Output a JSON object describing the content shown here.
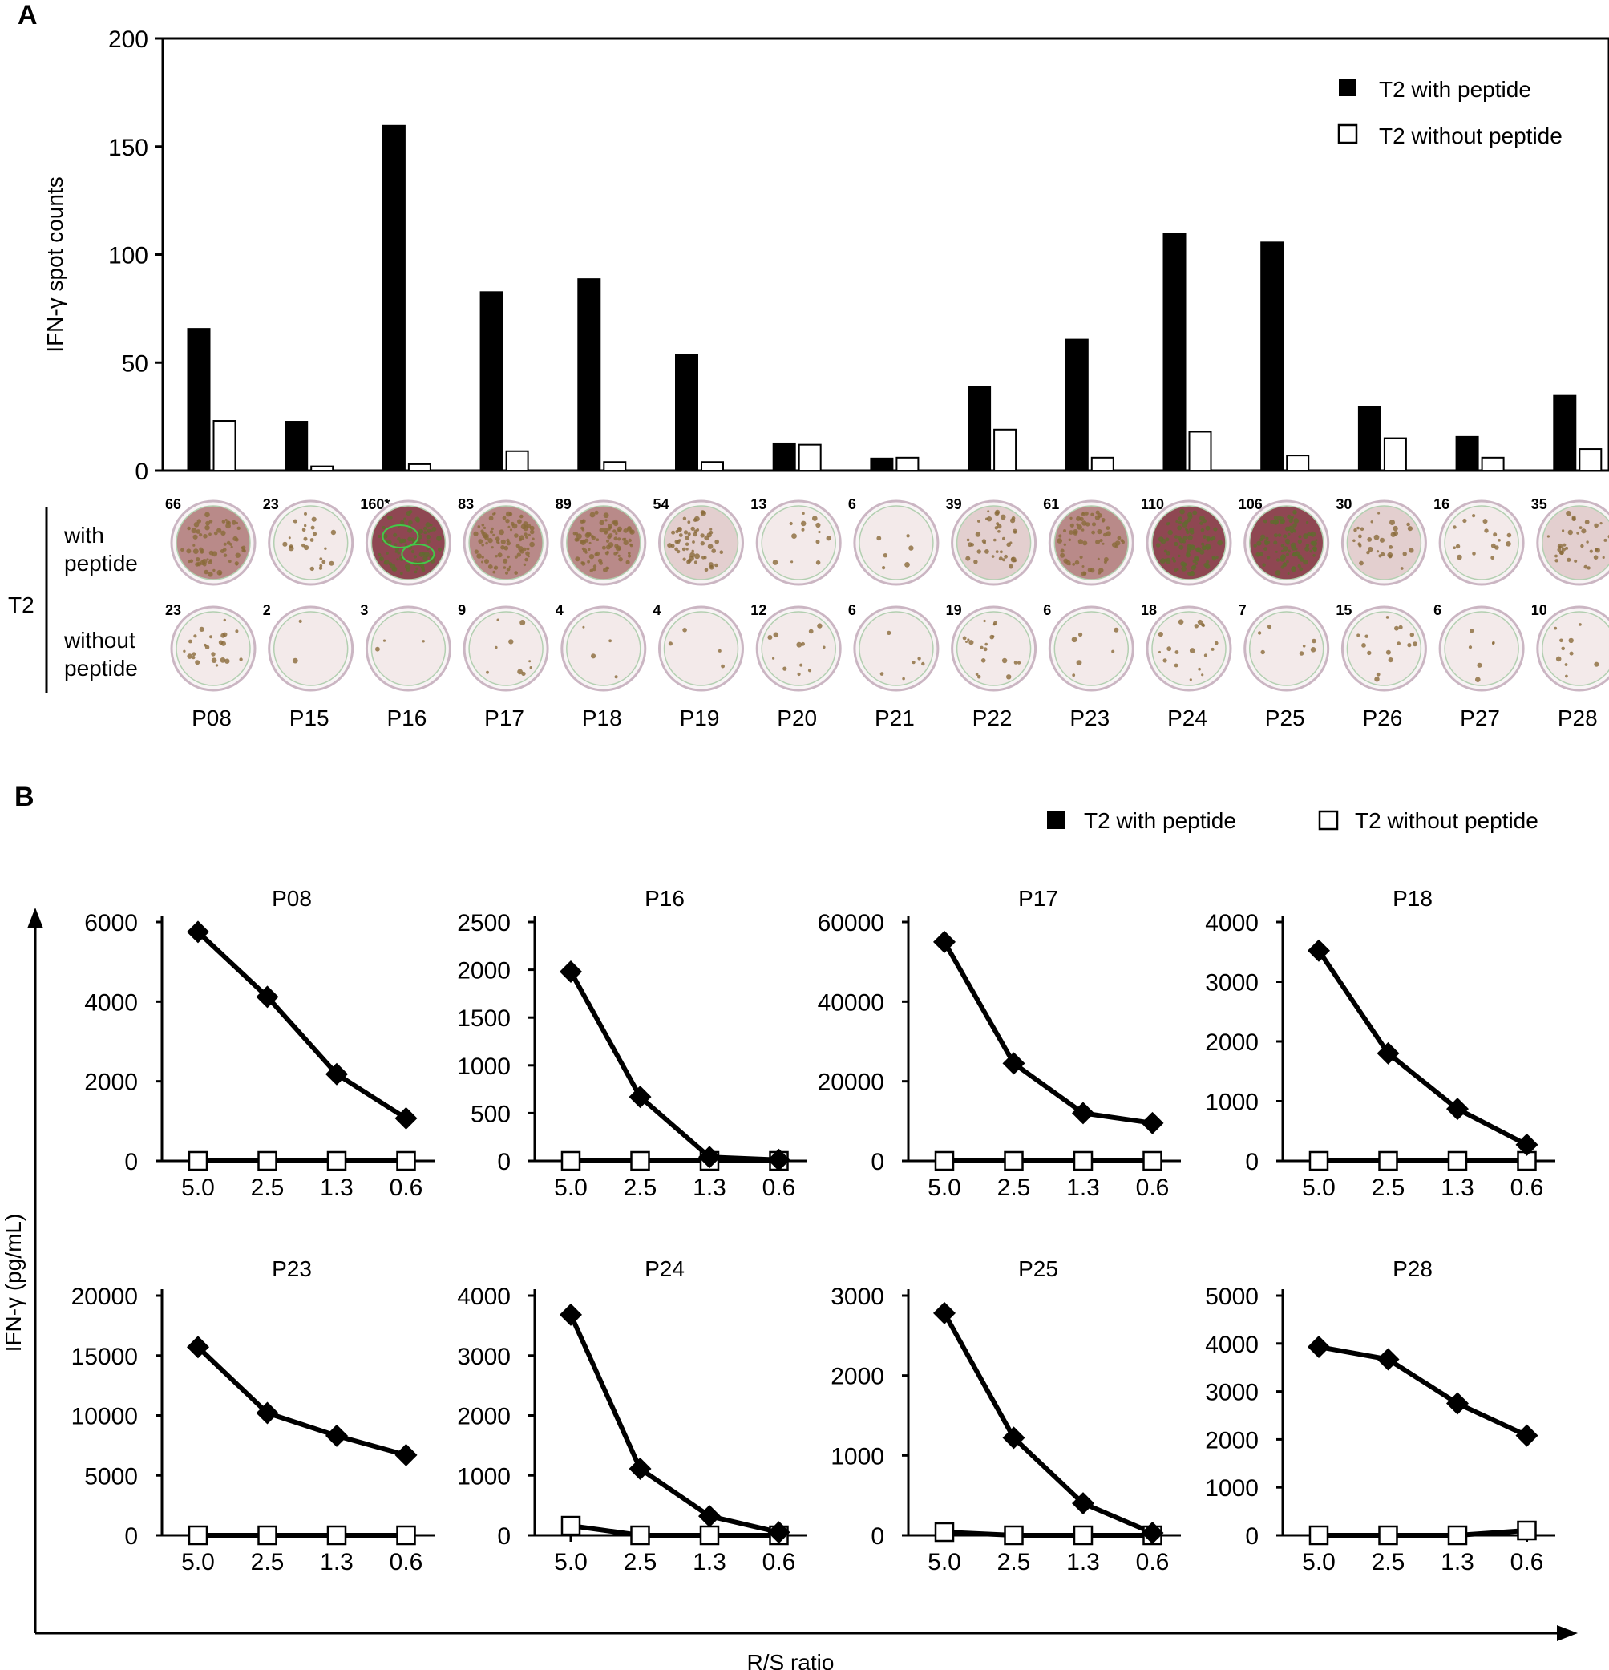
{
  "panel_labels": {
    "a": "A",
    "b": "B"
  },
  "legend": {
    "with_peptide": "T2 with peptide",
    "without_peptide": "T2 without peptide"
  },
  "panel_a": {
    "ylabel": "IFN-γ spot counts",
    "row_group_label": "T2",
    "row_with_label_1": "with",
    "row_with_label_2": "peptide",
    "row_without_label_1": "without",
    "row_without_label_2": "peptide"
  },
  "panel_b": {
    "ylabel": "IFN-γ (pg/mL)",
    "xlabel": "R/S ratio"
  },
  "chart_data": [
    {
      "type": "bar",
      "title": "",
      "xlabel": "",
      "ylabel": "IFN-γ spot counts",
      "ylim": [
        0,
        200
      ],
      "yticks": [
        0,
        50,
        100,
        150,
        200
      ],
      "categories": [
        "P08",
        "P15",
        "P16",
        "P17",
        "P18",
        "P19",
        "P20",
        "P21",
        "P22",
        "P23",
        "P24",
        "P25",
        "P26",
        "P27",
        "P28"
      ],
      "series": [
        {
          "name": "T2 with peptide",
          "color": "#000000",
          "values": [
            66,
            23,
            160,
            83,
            89,
            54,
            13,
            6,
            39,
            61,
            110,
            106,
            30,
            16,
            35
          ]
        },
        {
          "name": "T2 without peptide",
          "color": "#ffffff",
          "values": [
            23,
            2,
            3,
            9,
            4,
            4,
            12,
            6,
            19,
            6,
            18,
            7,
            15,
            6,
            10
          ]
        }
      ],
      "well_labels_with": [
        "66",
        "23",
        "160*",
        "83",
        "89",
        "54",
        "13",
        "6",
        "39",
        "61",
        "110",
        "106",
        "30",
        "16",
        "35"
      ],
      "well_labels_without": [
        "23",
        "2",
        "3",
        "9",
        "4",
        "4",
        "12",
        "6",
        "19",
        "6",
        "18",
        "7",
        "15",
        "6",
        "10"
      ],
      "legend_position": "top-right"
    },
    {
      "type": "line",
      "title": "P08",
      "xlabel": "R/S ratio",
      "ylabel": "IFN-γ (pg/mL)",
      "categories": [
        "5.0",
        "2.5",
        "1.3",
        "0.6"
      ],
      "ylim": [
        0,
        6000
      ],
      "yticks": [
        0,
        2000,
        4000,
        6000
      ],
      "series": [
        {
          "name": "T2 with peptide",
          "marker": "diamond",
          "values": [
            5750,
            4120,
            2180,
            1070
          ]
        },
        {
          "name": "T2 without peptide",
          "marker": "square",
          "values": [
            0,
            0,
            0,
            0
          ]
        }
      ]
    },
    {
      "type": "line",
      "title": "P16",
      "xlabel": "R/S ratio",
      "ylabel": "IFN-γ (pg/mL)",
      "categories": [
        "5.0",
        "2.5",
        "1.3",
        "0.6"
      ],
      "ylim": [
        0,
        2500
      ],
      "yticks": [
        0,
        500,
        1000,
        1500,
        2000,
        2500
      ],
      "series": [
        {
          "name": "T2 with peptide",
          "marker": "diamond",
          "values": [
            1980,
            670,
            40,
            10
          ]
        },
        {
          "name": "T2 without peptide",
          "marker": "square",
          "values": [
            0,
            0,
            0,
            0
          ]
        }
      ]
    },
    {
      "type": "line",
      "title": "P17",
      "xlabel": "R/S ratio",
      "ylabel": "IFN-γ (pg/mL)",
      "categories": [
        "5.0",
        "2.5",
        "1.3",
        "0.6"
      ],
      "ylim": [
        0,
        60000
      ],
      "yticks": [
        0,
        20000,
        40000,
        60000
      ],
      "series": [
        {
          "name": "T2 with peptide",
          "marker": "diamond",
          "values": [
            55000,
            24500,
            12000,
            9500
          ]
        },
        {
          "name": "T2 without peptide",
          "marker": "square",
          "values": [
            0,
            0,
            0,
            0
          ]
        }
      ]
    },
    {
      "type": "line",
      "title": "P18",
      "xlabel": "R/S ratio",
      "ylabel": "IFN-γ (pg/mL)",
      "categories": [
        "5.0",
        "2.5",
        "1.3",
        "0.6"
      ],
      "ylim": [
        0,
        4000
      ],
      "yticks": [
        0,
        1000,
        2000,
        3000,
        4000
      ],
      "series": [
        {
          "name": "T2 with peptide",
          "marker": "diamond",
          "values": [
            3520,
            1800,
            870,
            270
          ]
        },
        {
          "name": "T2 without peptide",
          "marker": "square",
          "values": [
            0,
            0,
            0,
            0
          ]
        }
      ]
    },
    {
      "type": "line",
      "title": "P23",
      "xlabel": "R/S ratio",
      "ylabel": "IFN-γ (pg/mL)",
      "categories": [
        "5.0",
        "2.5",
        "1.3",
        "0.6"
      ],
      "ylim": [
        0,
        20000
      ],
      "yticks": [
        0,
        5000,
        10000,
        15000,
        20000
      ],
      "series": [
        {
          "name": "T2 with peptide",
          "marker": "diamond",
          "values": [
            15700,
            10200,
            8300,
            6700
          ]
        },
        {
          "name": "T2 without peptide",
          "marker": "square",
          "values": [
            0,
            0,
            0,
            0
          ]
        }
      ]
    },
    {
      "type": "line",
      "title": "P24",
      "xlabel": "R/S ratio",
      "ylabel": "IFN-γ (pg/mL)",
      "categories": [
        "5.0",
        "2.5",
        "1.3",
        "0.6"
      ],
      "ylim": [
        0,
        4000
      ],
      "yticks": [
        0,
        1000,
        2000,
        3000,
        4000
      ],
      "series": [
        {
          "name": "T2 with peptide",
          "marker": "diamond",
          "values": [
            3680,
            1110,
            320,
            50
          ]
        },
        {
          "name": "T2 without peptide",
          "marker": "square",
          "values": [
            160,
            0,
            0,
            0
          ]
        }
      ]
    },
    {
      "type": "line",
      "title": "P25",
      "xlabel": "R/S ratio",
      "ylabel": "IFN-γ (pg/mL)",
      "categories": [
        "5.0",
        "2.5",
        "1.3",
        "0.6"
      ],
      "ylim": [
        0,
        3000
      ],
      "yticks": [
        0,
        1000,
        2000,
        3000
      ],
      "series": [
        {
          "name": "T2 with peptide",
          "marker": "diamond",
          "values": [
            2780,
            1220,
            400,
            30
          ]
        },
        {
          "name": "T2 without peptide",
          "marker": "square",
          "values": [
            40,
            0,
            0,
            0
          ]
        }
      ]
    },
    {
      "type": "line",
      "title": "P28",
      "xlabel": "R/S ratio",
      "ylabel": "IFN-γ (pg/mL)",
      "categories": [
        "5.0",
        "2.5",
        "1.3",
        "0.6"
      ],
      "ylim": [
        0,
        5000
      ],
      "yticks": [
        0,
        1000,
        2000,
        3000,
        4000,
        5000
      ],
      "series": [
        {
          "name": "T2 with peptide",
          "marker": "diamond",
          "values": [
            3930,
            3670,
            2750,
            2080
          ]
        },
        {
          "name": "T2 without peptide",
          "marker": "square",
          "values": [
            0,
            0,
            0,
            100
          ]
        }
      ]
    }
  ]
}
